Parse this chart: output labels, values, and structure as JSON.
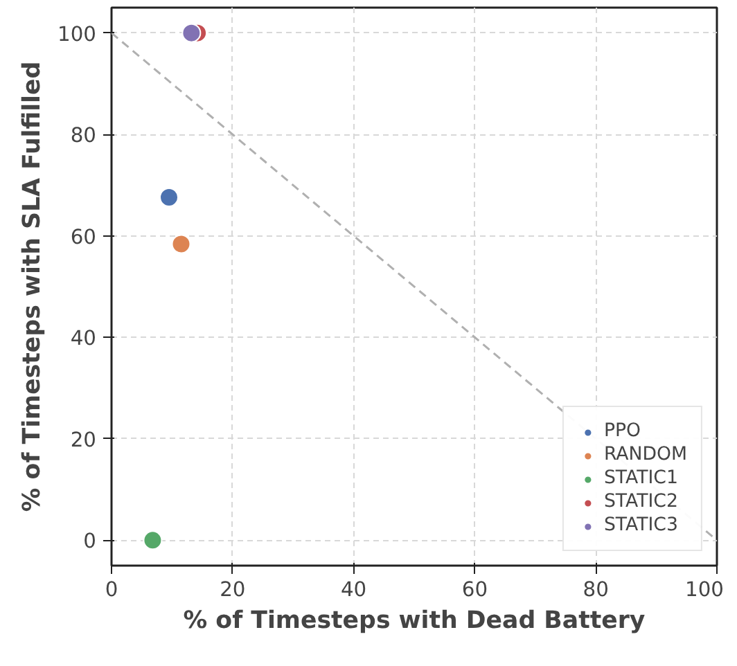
{
  "chart_data": {
    "type": "scatter",
    "xlabel": "% of Timesteps with Dead Battery",
    "ylabel": "% of Timesteps with SLA Fulfilled",
    "xlim": [
      0,
      100
    ],
    "ylim": [
      -5,
      105
    ],
    "xticks": [
      0,
      20,
      40,
      60,
      80,
      100
    ],
    "yticks": [
      0,
      20,
      40,
      60,
      80,
      100
    ],
    "grid": true,
    "legend": "bottom right",
    "marker": "circle",
    "series": [
      {
        "type": "line",
        "color": "#b0b0b0",
        "line_style": "dashed",
        "marker": "none",
        "x": [
          0,
          100
        ],
        "values": [
          100,
          0
        ]
      },
      {
        "name": "PPO",
        "color": "#4c72b0",
        "x": [
          9.5
        ],
        "values": [
          67.6
        ]
      },
      {
        "name": "RANDOM",
        "color": "#dd8452",
        "x": [
          11.5
        ],
        "values": [
          58.4
        ]
      },
      {
        "name": "STATIC1",
        "color": "#55a868",
        "x": [
          6.8
        ],
        "values": [
          0
        ]
      },
      {
        "name": "STATIC2",
        "color": "#c44e52",
        "x": [
          14.2
        ],
        "values": [
          100
        ]
      },
      {
        "name": "STATIC3",
        "color": "#8172b3",
        "x": [
          13.2
        ],
        "values": [
          100
        ]
      }
    ]
  }
}
